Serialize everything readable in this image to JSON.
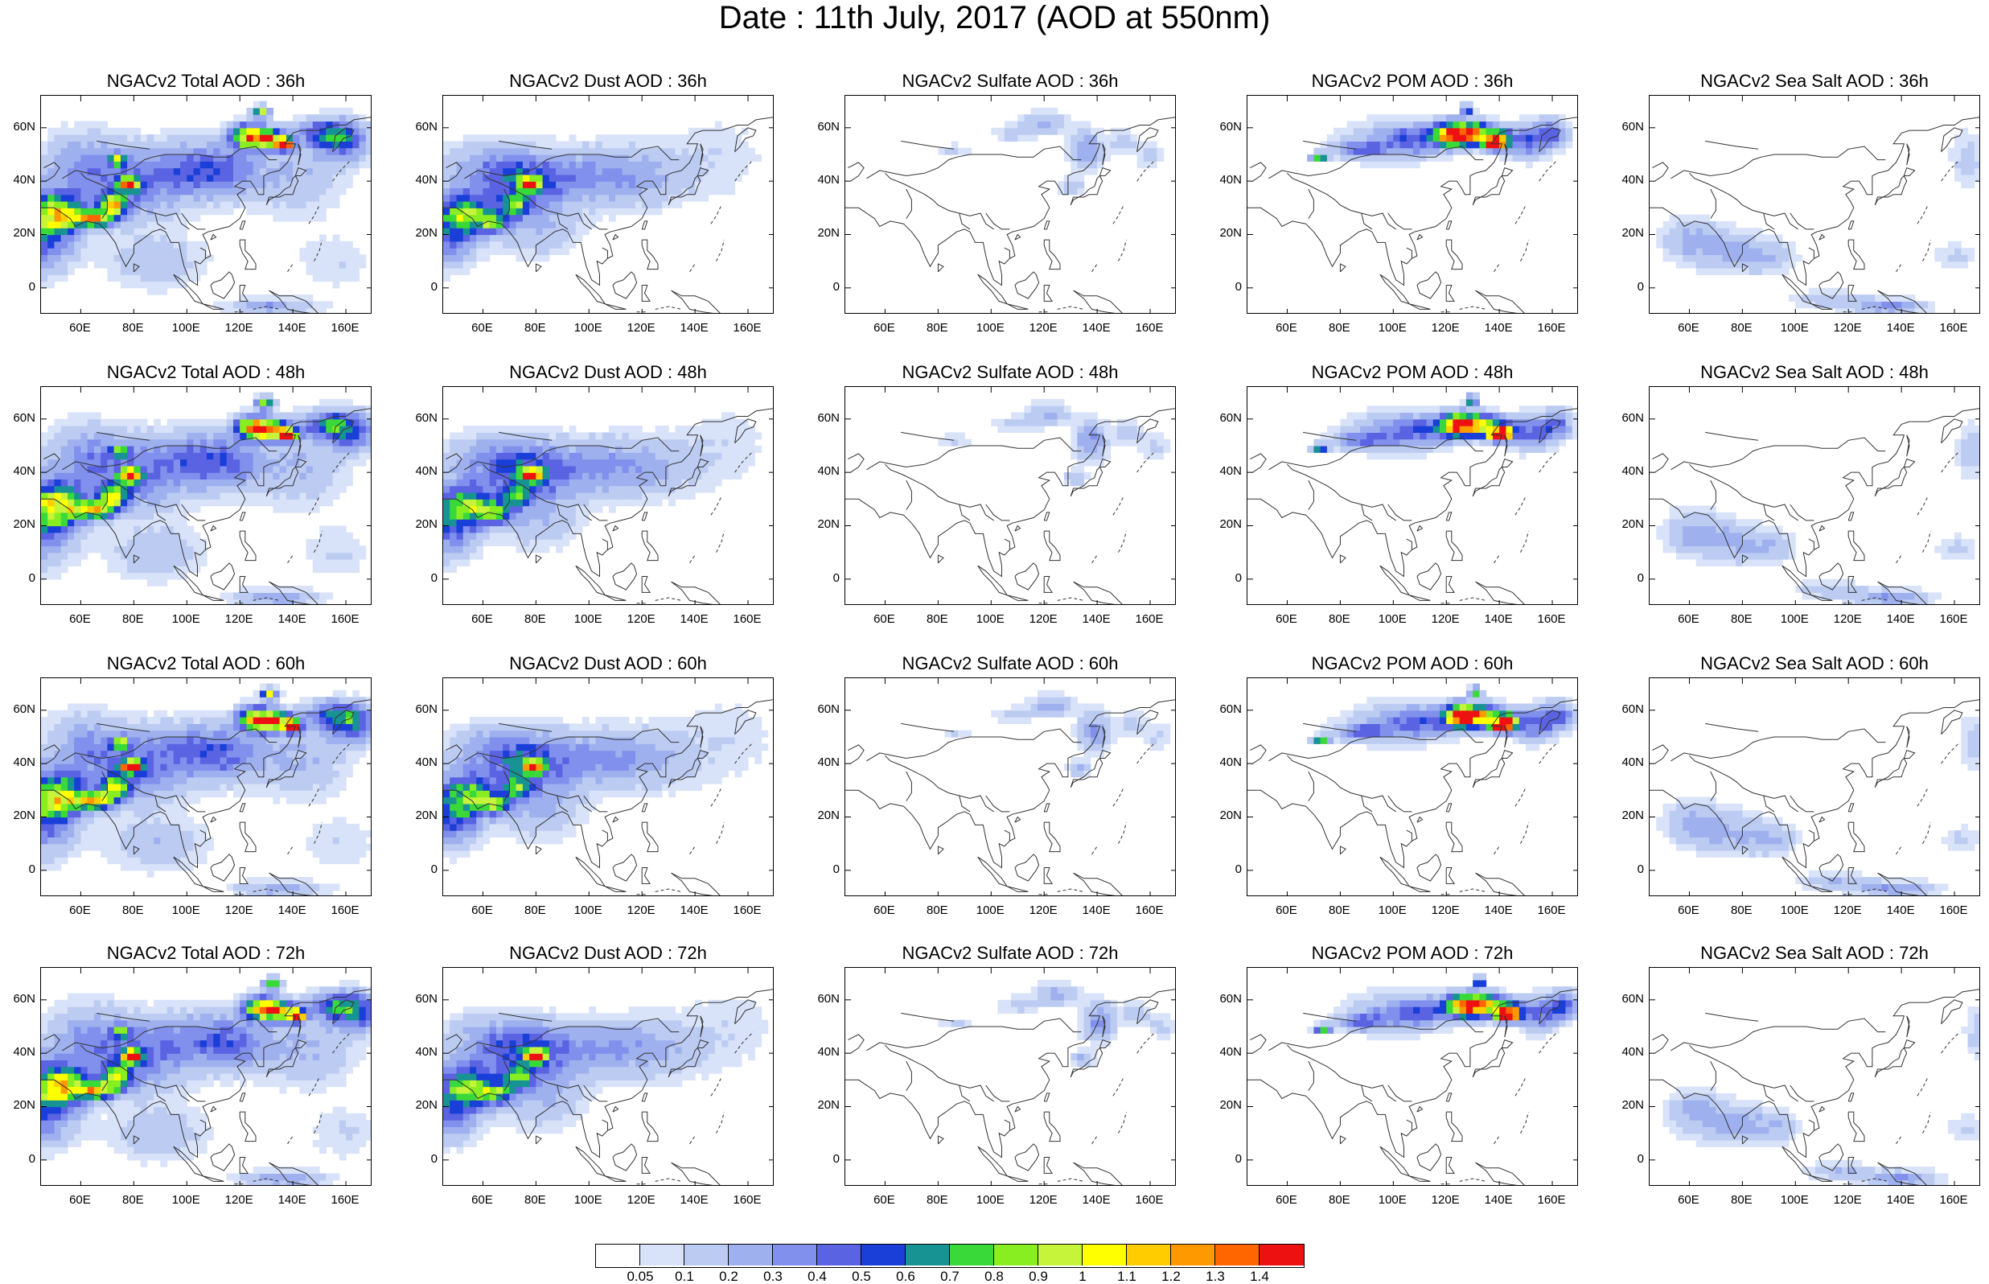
{
  "title": "Date : 11th July, 2017 (AOD at 550nm)",
  "panels": [
    {
      "title": "NGACv2 Total AOD : 36h",
      "field": "total"
    },
    {
      "title": "NGACv2 Dust AOD : 36h",
      "field": "dust"
    },
    {
      "title": "NGACv2 Sulfate AOD : 36h",
      "field": "sulfate"
    },
    {
      "title": "NGACv2 POM AOD : 36h",
      "field": "pom"
    },
    {
      "title": "NGACv2 Sea Salt AOD : 36h",
      "field": "seasalt"
    },
    {
      "title": "NGACv2 Total AOD : 48h",
      "field": "total"
    },
    {
      "title": "NGACv2 Dust AOD : 48h",
      "field": "dust"
    },
    {
      "title": "NGACv2 Sulfate AOD : 48h",
      "field": "sulfate"
    },
    {
      "title": "NGACv2 POM AOD : 48h",
      "field": "pom"
    },
    {
      "title": "NGACv2 Sea Salt AOD : 48h",
      "field": "seasalt"
    },
    {
      "title": "NGACv2 Total AOD : 60h",
      "field": "total"
    },
    {
      "title": "NGACv2 Dust AOD : 60h",
      "field": "dust"
    },
    {
      "title": "NGACv2 Sulfate AOD : 60h",
      "field": "sulfate"
    },
    {
      "title": "NGACv2 POM AOD : 60h",
      "field": "pom"
    },
    {
      "title": "NGACv2 Sea Salt AOD : 60h",
      "field": "seasalt"
    },
    {
      "title": "NGACv2 Total AOD : 72h",
      "field": "total"
    },
    {
      "title": "NGACv2 Dust AOD : 72h",
      "field": "dust"
    },
    {
      "title": "NGACv2 Sulfate AOD : 72h",
      "field": "sulfate"
    },
    {
      "title": "NGACv2 POM AOD : 72h",
      "field": "pom"
    },
    {
      "title": "NGACv2 Sea Salt  AOD : 72h",
      "field": "seasalt"
    }
  ],
  "axes": {
    "y_ticks": [
      "60N",
      "40N",
      "20N",
      "0"
    ],
    "x_ticks": [
      "60E",
      "80E",
      "100E",
      "120E",
      "140E",
      "160E"
    ]
  },
  "colorbar": {
    "labels": [
      "0.05",
      "0.1",
      "0.2",
      "0.3",
      "0.4",
      "0.5",
      "0.6",
      "0.7",
      "0.8",
      "0.9",
      "1",
      "1.1",
      "1.2",
      "1.3",
      "1.4"
    ],
    "colors": [
      "#ffffff",
      "#d8e2f8",
      "#bccbf2",
      "#9fb0ef",
      "#8090ec",
      "#5a63e2",
      "#1a3fd8",
      "#179393",
      "#3ad93a",
      "#88ee22",
      "#c6f43a",
      "#ffff00",
      "#ffcc00",
      "#ff9900",
      "#ff6600",
      "#ee1111"
    ]
  }
}
